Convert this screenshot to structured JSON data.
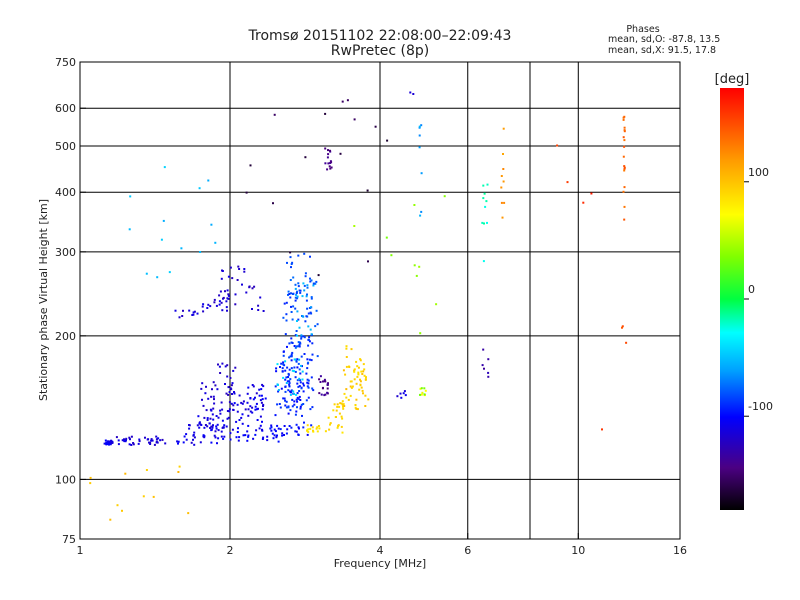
{
  "chart_data": {
    "type": "scatter",
    "title": "Tromsø 20151102 22:08:00–22:09:43",
    "subtitle": "RwPretec (8p)",
    "stats": {
      "heading": "Phases",
      "line_o": "mean, sd,O: -87.8, 13.5",
      "line_x": "mean, sd,X: 91.5, 17.8"
    },
    "xlabel": "Frequency [MHz]",
    "ylabel": "Stationary phase Virtual Height [km]",
    "xscale": "log",
    "yscale": "log",
    "xlim": [
      1,
      16
    ],
    "ylim": [
      75,
      750
    ],
    "xticks": [
      1,
      2,
      4,
      6,
      10,
      16
    ],
    "xtick_labels": [
      "1",
      "2",
      "4",
      "6",
      "10",
      "16"
    ],
    "xgrid": [
      2,
      4,
      6,
      8,
      10
    ],
    "yticks": [
      75,
      100,
      200,
      300,
      400,
      500,
      600,
      750
    ],
    "ytick_labels": [
      "75",
      "100",
      "200",
      "300",
      "400",
      "500",
      "600",
      "750"
    ],
    "ygrid": [
      100,
      200,
      300,
      400,
      500,
      600
    ],
    "grid": true,
    "colorbar": {
      "label": "[deg]",
      "range": [
        -180,
        180
      ],
      "ticks": [
        100,
        0,
        -100
      ],
      "tick_labels": [
        "100",
        "0",
        "-100"
      ]
    },
    "points": [
      [
        1.12,
        1.16,
        118,
        121,
        26,
        -105
      ],
      [
        1.16,
        1.5,
        118,
        123,
        40,
        -115
      ],
      [
        1.5,
        1.7,
        118,
        123,
        8,
        -110
      ],
      [
        1.7,
        1.95,
        119,
        124,
        12,
        -108
      ],
      [
        1.62,
        1.95,
        122,
        132,
        25,
        -110
      ],
      [
        1.72,
        2.0,
        128,
        142,
        35,
        -112
      ],
      [
        1.75,
        2.05,
        140,
        160,
        25,
        -115
      ],
      [
        1.85,
        2.05,
        152,
        178,
        15,
        -118
      ],
      [
        2.0,
        2.55,
        120,
        124,
        20,
        -105
      ],
      [
        2.0,
        2.35,
        125,
        155,
        45,
        -108
      ],
      [
        2.15,
        2.4,
        140,
        160,
        20,
        -110
      ],
      [
        2.4,
        2.95,
        122,
        132,
        25,
        -100
      ],
      [
        2.45,
        2.8,
        128,
        175,
        50,
        -95
      ],
      [
        2.55,
        2.95,
        140,
        200,
        85,
        -90
      ],
      [
        2.55,
        3.0,
        170,
        250,
        60,
        -85
      ],
      [
        2.6,
        3.0,
        240,
        300,
        30,
        -80
      ],
      [
        2.45,
        2.8,
        150,
        180,
        20,
        -45
      ],
      [
        2.7,
        2.95,
        200,
        260,
        20,
        -55
      ],
      [
        3.0,
        3.15,
        150,
        165,
        20,
        -140
      ],
      [
        2.85,
        3.15,
        125,
        130,
        15,
        85
      ],
      [
        3.15,
        3.4,
        125,
        145,
        25,
        90
      ],
      [
        3.35,
        3.8,
        140,
        175,
        45,
        95
      ],
      [
        3.4,
        3.7,
        165,
        195,
        15,
        90
      ],
      [
        1.55,
        1.75,
        218,
        226,
        10,
        -115
      ],
      [
        1.75,
        2.05,
        225,
        240,
        20,
        -115
      ],
      [
        1.9,
        2.15,
        240,
        280,
        20,
        -118
      ],
      [
        2.15,
        2.35,
        225,
        255,
        10,
        -120
      ],
      [
        3.1,
        3.2,
        445,
        500,
        15,
        -140
      ],
      [
        4.8,
        4.95,
        150,
        155,
        6,
        70
      ],
      [
        4.8,
        4.95,
        150,
        156,
        4,
        30
      ],
      [
        4.0,
        4.7,
        148,
        154,
        6,
        -115
      ],
      [
        4.8,
        4.85,
        310,
        560,
        8,
        -60
      ],
      [
        4.6,
        4.8,
        640,
        650,
        2,
        -120
      ],
      [
        6.4,
        6.6,
        270,
        420,
        10,
        -20
      ],
      [
        6.4,
        6.6,
        160,
        200,
        6,
        -130
      ],
      [
        7.0,
        7.1,
        330,
        570,
        9,
        120
      ],
      [
        12.3,
        12.4,
        350,
        580,
        18,
        140
      ],
      [
        12.2,
        12.5,
        190,
        210,
        3,
        150
      ],
      [
        1.0,
        1.7,
        80,
        110,
        12,
        100
      ],
      [
        1.2,
        1.9,
        200,
        460,
        14,
        -50
      ],
      [
        2.0,
        4.2,
        250,
        650,
        16,
        -160
      ],
      [
        3.5,
        5.5,
        200,
        420,
        10,
        40
      ],
      [
        8.0,
        11.5,
        110,
        560,
        5,
        160
      ]
    ]
  }
}
